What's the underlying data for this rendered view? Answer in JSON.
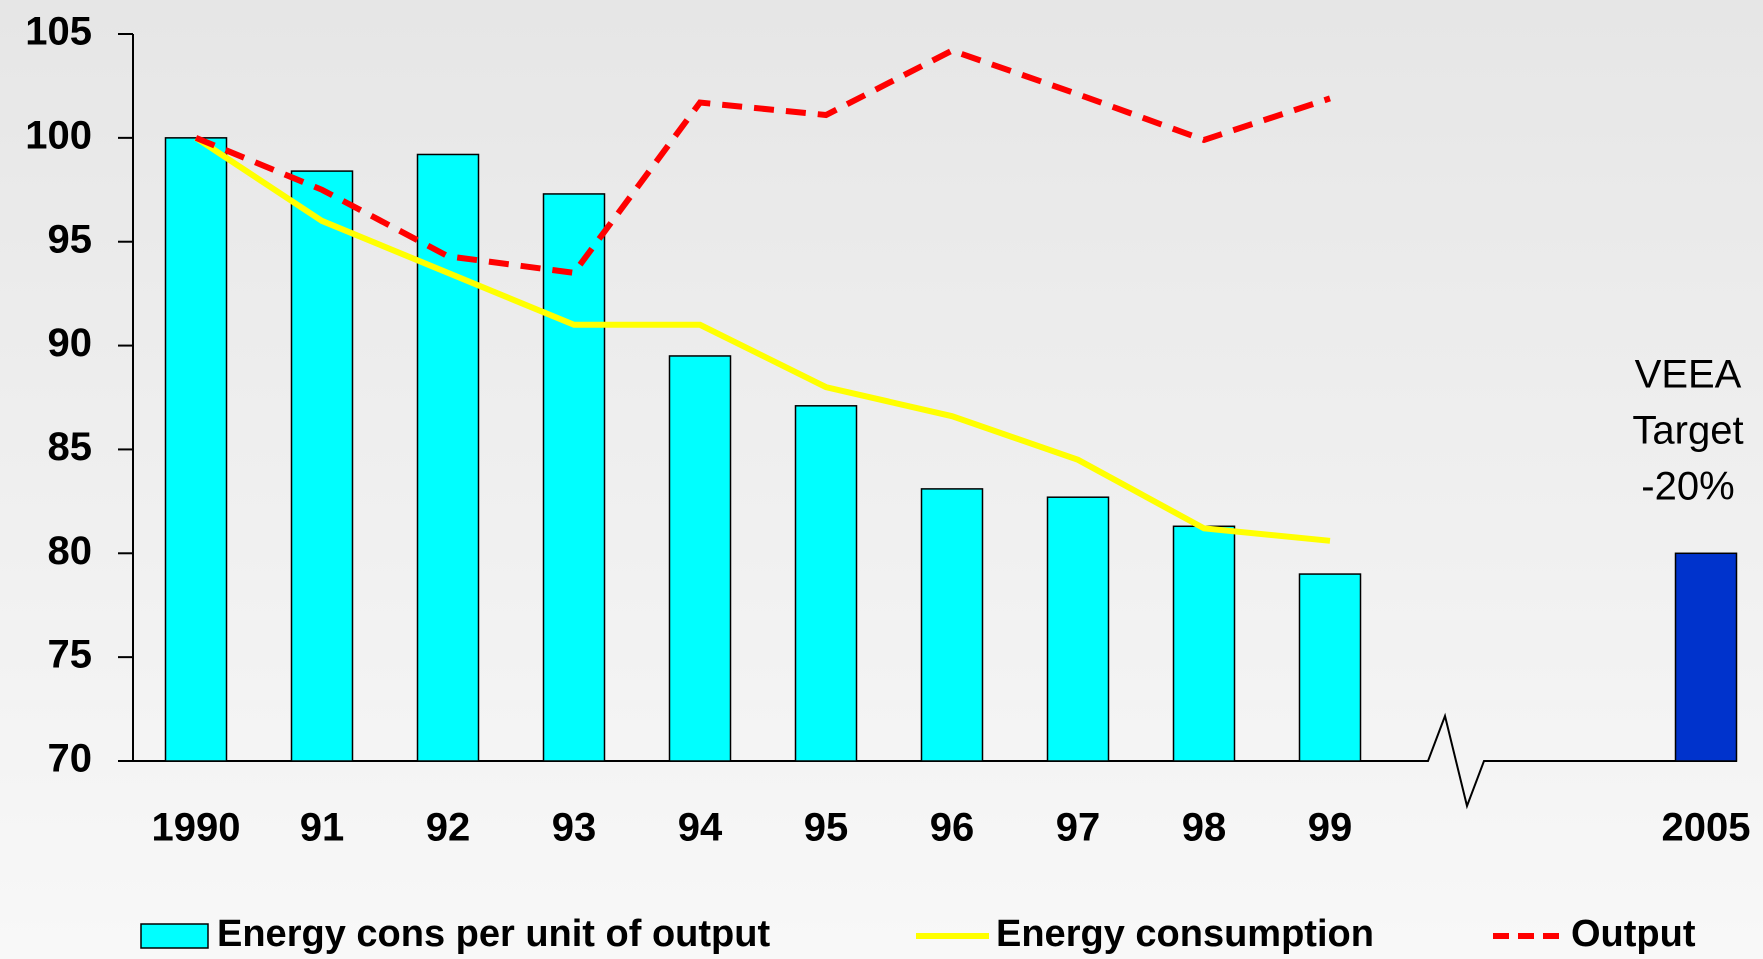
{
  "chart_data": {
    "type": "bar-line",
    "categories": [
      "1990",
      "91",
      "92",
      "93",
      "94",
      "95",
      "96",
      "97",
      "98",
      "99",
      "2005"
    ],
    "series": [
      {
        "name": "Energy cons per unit of output",
        "type": "bar",
        "color": "#00ffff",
        "point_colors": [
          "#00ffff",
          "#00ffff",
          "#00ffff",
          "#00ffff",
          "#00ffff",
          "#00ffff",
          "#00ffff",
          "#00ffff",
          "#00ffff",
          "#00ffff",
          "#0033cc"
        ],
        "values": [
          100,
          98.4,
          99.2,
          97.3,
          89.5,
          87.1,
          83.1,
          82.7,
          81.3,
          79.0,
          80
        ]
      },
      {
        "name": "Energy consumption",
        "type": "line",
        "color": "#ffff00",
        "values": [
          100,
          96,
          93.5,
          91,
          91,
          88,
          86.6,
          84.5,
          81.2,
          80.6,
          null
        ]
      },
      {
        "name": "Output",
        "type": "line",
        "dashed": true,
        "color": "#ff0000",
        "values": [
          100,
          97.5,
          94.3,
          93.5,
          101.7,
          101.1,
          104.2,
          102.1,
          99.9,
          101.9,
          null
        ]
      }
    ],
    "annotations": [
      "VEEA",
      "Target",
      "-20%"
    ],
    "ylim": [
      70,
      105
    ],
    "yticks": [
      70,
      75,
      80,
      85,
      90,
      95,
      100,
      105
    ]
  }
}
